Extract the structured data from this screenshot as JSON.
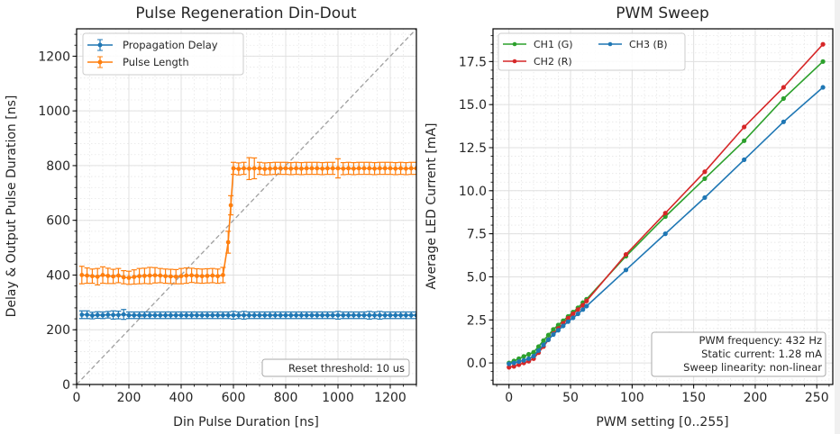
{
  "chart_data": [
    {
      "type": "line",
      "title": "Pulse Regeneration Din-Dout",
      "xlabel": "Din Pulse Duration [ns]",
      "ylabel": "Delay & Output Pulse Duration [ns]",
      "xlim": [
        0,
        1300
      ],
      "ylim": [
        0,
        1300
      ],
      "xticks": [
        0,
        200,
        400,
        600,
        800,
        1000,
        1200
      ],
      "yticks": [
        0,
        200,
        400,
        600,
        800,
        1000,
        1200
      ],
      "grid": true,
      "legend_position": "top-left",
      "reference_line": {
        "name": "y = x",
        "style": "dashed",
        "color": "#a0a0a0"
      },
      "annotation": "Reset threshold: 10 us",
      "annotation_position": "bottom-right",
      "series": [
        {
          "name": "Propagation Delay",
          "color": "#1f77b4",
          "error_bars": true,
          "x": [
            20,
            40,
            60,
            80,
            100,
            120,
            140,
            160,
            180,
            200,
            220,
            240,
            260,
            280,
            300,
            320,
            340,
            360,
            380,
            400,
            420,
            440,
            460,
            480,
            500,
            520,
            540,
            560,
            580,
            600,
            620,
            640,
            660,
            680,
            700,
            720,
            740,
            760,
            780,
            800,
            820,
            840,
            860,
            880,
            900,
            920,
            940,
            960,
            980,
            1000,
            1020,
            1040,
            1060,
            1080,
            1100,
            1120,
            1140,
            1160,
            1180,
            1200,
            1220,
            1240,
            1260,
            1280,
            1300
          ],
          "y": [
            255,
            255,
            252,
            254,
            253,
            255,
            254,
            254,
            256,
            253,
            253,
            253,
            253,
            253,
            253,
            253,
            253,
            253,
            253,
            253,
            253,
            253,
            253,
            253,
            253,
            253,
            253,
            253,
            253,
            253,
            253,
            253,
            253,
            253,
            253,
            253,
            253,
            253,
            253,
            253,
            253,
            253,
            253,
            253,
            253,
            253,
            253,
            253,
            253,
            253,
            253,
            253,
            253,
            253,
            253,
            253,
            253,
            253,
            253,
            253,
            253,
            253,
            253,
            253,
            253
          ],
          "yerr": [
            14,
            14,
            12,
            12,
            12,
            12,
            15,
            14,
            18,
            12,
            12,
            12,
            12,
            12,
            12,
            12,
            12,
            12,
            12,
            12,
            12,
            12,
            12,
            12,
            12,
            12,
            12,
            12,
            12,
            14,
            12,
            14,
            12,
            12,
            12,
            12,
            12,
            12,
            12,
            12,
            12,
            12,
            12,
            12,
            12,
            12,
            12,
            12,
            12,
            14,
            12,
            12,
            12,
            12,
            12,
            14,
            12,
            14,
            12,
            12,
            12,
            12,
            12,
            12,
            12
          ]
        },
        {
          "name": "Pulse Length",
          "color": "#ff7f0e",
          "error_bars": true,
          "x": [
            20,
            40,
            60,
            80,
            100,
            120,
            140,
            160,
            180,
            200,
            220,
            240,
            260,
            280,
            300,
            320,
            340,
            360,
            380,
            400,
            420,
            440,
            460,
            480,
            500,
            520,
            540,
            560,
            580,
            590,
            600,
            620,
            640,
            660,
            680,
            700,
            720,
            740,
            760,
            780,
            800,
            820,
            840,
            860,
            880,
            900,
            920,
            940,
            960,
            980,
            1000,
            1020,
            1040,
            1060,
            1080,
            1100,
            1120,
            1140,
            1160,
            1180,
            1200,
            1220,
            1240,
            1260,
            1280,
            1300
          ],
          "y": [
            400,
            398,
            396,
            394,
            400,
            397,
            395,
            398,
            392,
            390,
            393,
            396,
            397,
            398,
            399,
            398,
            396,
            395,
            394,
            396,
            398,
            399,
            397,
            396,
            397,
            398,
            396,
            400,
            520,
            655,
            790,
            788,
            790,
            789,
            790,
            790,
            788,
            789,
            790,
            790,
            790,
            789,
            790,
            789,
            790,
            790,
            790,
            789,
            790,
            790,
            790,
            789,
            790,
            789,
            790,
            790,
            790,
            789,
            790,
            790,
            790,
            789,
            790,
            789,
            790,
            790
          ],
          "yerr": [
            32,
            28,
            26,
            30,
            30,
            28,
            26,
            26,
            24,
            24,
            26,
            28,
            28,
            30,
            28,
            26,
            26,
            26,
            26,
            28,
            28,
            26,
            26,
            26,
            26,
            26,
            26,
            28,
            40,
            35,
            22,
            22,
            22,
            40,
            38,
            22,
            22,
            22,
            22,
            22,
            22,
            22,
            22,
            22,
            22,
            22,
            22,
            22,
            22,
            22,
            35,
            22,
            22,
            22,
            22,
            22,
            22,
            22,
            22,
            22,
            22,
            22,
            22,
            22,
            22,
            22
          ]
        }
      ]
    },
    {
      "type": "line",
      "title": "PWM Sweep",
      "xlabel": "PWM setting [0..255]",
      "ylabel": "Average LED Current [mA]",
      "xlim": [
        -13,
        263
      ],
      "ylim": [
        -1.25,
        19.4
      ],
      "xticks": [
        0,
        50,
        100,
        150,
        200,
        250
      ],
      "yticks": [
        0.0,
        2.5,
        5.0,
        7.5,
        10.0,
        12.5,
        15.0,
        17.5
      ],
      "ytick_labels": [
        "0.0",
        "2.5",
        "5.0",
        "7.5",
        "10.0",
        "12.5",
        "15.0",
        "17.5"
      ],
      "grid": true,
      "legend_position": "top-left",
      "legend_columns": 2,
      "annotation_lines": [
        "PWM frequency: 432 Hz",
        "Static current: 1.28 mA",
        "Sweep linearity: non-linear"
      ],
      "annotation_position": "bottom-right",
      "series": [
        {
          "name": "CH1 (G)",
          "color": "#2ca02c",
          "x": [
            0,
            4,
            8,
            12,
            16,
            20,
            24,
            28,
            32,
            36,
            40,
            44,
            48,
            52,
            56,
            60,
            63,
            95,
            127,
            159,
            191,
            223,
            255
          ],
          "y": [
            0.0,
            0.12,
            0.25,
            0.38,
            0.5,
            0.62,
            0.95,
            1.3,
            1.62,
            1.95,
            2.2,
            2.45,
            2.7,
            2.95,
            3.2,
            3.5,
            3.7,
            6.2,
            8.5,
            10.7,
            12.9,
            15.35,
            17.5
          ]
        },
        {
          "name": "CH2 (R)",
          "color": "#d62728",
          "x": [
            0,
            4,
            8,
            12,
            16,
            20,
            24,
            28,
            32,
            36,
            40,
            44,
            48,
            52,
            56,
            60,
            63,
            95,
            127,
            159,
            191,
            223,
            255
          ],
          "y": [
            -0.25,
            -0.2,
            -0.1,
            0.0,
            0.1,
            0.25,
            0.6,
            0.95,
            1.35,
            1.7,
            2.0,
            2.3,
            2.6,
            2.85,
            3.1,
            3.35,
            3.6,
            6.3,
            8.7,
            11.1,
            13.7,
            16.0,
            18.5
          ]
        },
        {
          "name": "CH3 (B)",
          "color": "#1f77b4",
          "x": [
            0,
            4,
            8,
            12,
            16,
            20,
            24,
            28,
            32,
            36,
            40,
            44,
            48,
            52,
            56,
            60,
            63,
            95,
            127,
            159,
            191,
            223,
            255
          ],
          "y": [
            -0.05,
            0.0,
            0.08,
            0.15,
            0.25,
            0.4,
            0.72,
            1.05,
            1.35,
            1.65,
            1.9,
            2.15,
            2.4,
            2.62,
            2.85,
            3.1,
            3.3,
            5.4,
            7.5,
            9.6,
            11.8,
            14.0,
            16.0
          ]
        }
      ]
    }
  ]
}
